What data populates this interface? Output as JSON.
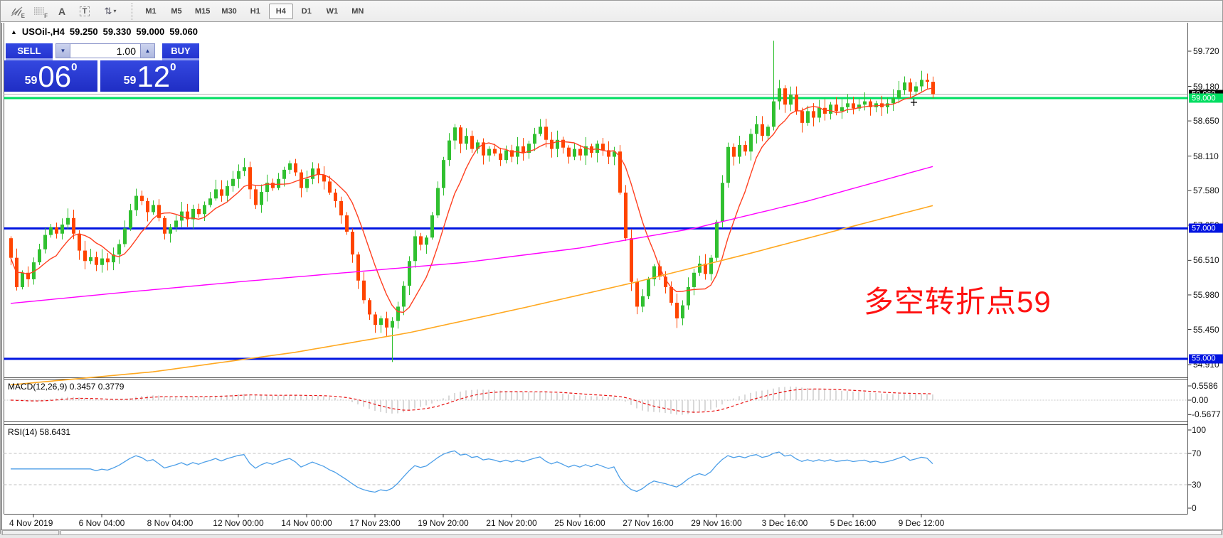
{
  "toolbar": {
    "icons": [
      {
        "name": "indicators-icon",
        "sub": "E"
      },
      {
        "name": "fibonacci-grid-icon",
        "sub": "F"
      },
      {
        "name": "text-label-icon",
        "glyph": "A"
      },
      {
        "name": "text-box-icon",
        "glyph": "T"
      },
      {
        "name": "arrows-tool-icon",
        "glyph": "⇅",
        "caret": "▾"
      }
    ],
    "timeframes": [
      {
        "label": "M1",
        "active": false
      },
      {
        "label": "M5",
        "active": false
      },
      {
        "label": "M15",
        "active": false
      },
      {
        "label": "M30",
        "active": false
      },
      {
        "label": "H1",
        "active": false
      },
      {
        "label": "H4",
        "active": true
      },
      {
        "label": "D1",
        "active": false
      },
      {
        "label": "W1",
        "active": false
      },
      {
        "label": "MN",
        "active": false
      }
    ]
  },
  "quote": {
    "marker": "▲",
    "symbol": "USOil-,H4",
    "open": "59.250",
    "high": "59.330",
    "low": "59.000",
    "close": "59.060"
  },
  "trade_panel": {
    "sell_label": "SELL",
    "buy_label": "BUY",
    "volume": "1.00",
    "spin_down": "▼",
    "spin_up": "▲",
    "sell_price": {
      "small": "59",
      "big": "06",
      "sup": "0"
    },
    "buy_price": {
      "small": "59",
      "big": "12",
      "sup": "0"
    }
  },
  "annotation": {
    "text": "多空转折点59",
    "color": "#ff1212"
  },
  "indicators": {
    "macd_label": "MACD(12,26,9) 0.3457 0.3779",
    "rsi_label": "RSI(14) 58.6431"
  },
  "axis": {
    "price_ticks": [
      {
        "label": "59.720",
        "price": 59.72
      },
      {
        "label": "59.180",
        "price": 59.18
      },
      {
        "label": "58.650",
        "price": 58.65
      },
      {
        "label": "58.110",
        "price": 58.11
      },
      {
        "label": "57.580",
        "price": 57.58
      },
      {
        "label": "57.050",
        "price": 57.05
      },
      {
        "label": "56.510",
        "price": 56.51
      },
      {
        "label": "55.980",
        "price": 55.98
      },
      {
        "label": "55.450",
        "price": 55.45
      },
      {
        "label": "54.910",
        "price": 54.91
      }
    ],
    "badges": [
      {
        "label": "59.060",
        "price": 59.06,
        "bg": "#000000",
        "fg": "#ffffff"
      },
      {
        "label": "59.000",
        "price": 59.0,
        "bg": "#00de62",
        "fg": "#ffffff"
      },
      {
        "label": "57.000",
        "price": 57.0,
        "bg": "#0014e0",
        "fg": "#ffffff"
      },
      {
        "label": "55.000",
        "price": 55.0,
        "bg": "#0014e0",
        "fg": "#ffffff"
      }
    ],
    "macd_ticks": [
      {
        "label": "0.5586",
        "value": 0.5586
      },
      {
        "label": "0.00",
        "value": 0.0
      },
      {
        "label": "-0.5677",
        "value": -0.5677
      }
    ],
    "rsi_ticks": [
      {
        "label": "100",
        "value": 100
      },
      {
        "label": "70",
        "value": 70
      },
      {
        "label": "30",
        "value": 30
      },
      {
        "label": "0",
        "value": 0
      }
    ],
    "dates": [
      "4 Nov 2019",
      "6 Nov 04:00",
      "8 Nov 04:00",
      "12 Nov 00:00",
      "14 Nov 00:00",
      "17 Nov 23:00",
      "19 Nov 20:00",
      "21 Nov 20:00",
      "25 Nov 16:00",
      "27 Nov 16:00",
      "29 Nov 16:00",
      "3 Dec 16:00",
      "5 Dec 16:00",
      "9 Dec 12:00"
    ]
  },
  "chart_data": {
    "type": "candlestick",
    "symbol": "USOil-",
    "timeframe": "H4",
    "title": "USOil-,H4  59.250 59.330 59.000 59.060",
    "ylim": [
      54.74,
      60.05
    ],
    "last_bar": {
      "open": 59.25,
      "high": 59.33,
      "low": 59.0,
      "close": 59.06
    },
    "current_price": 59.06,
    "open_first": 56.85,
    "closes": [
      56.55,
      56.1,
      56.32,
      56.22,
      56.48,
      56.68,
      56.9,
      57.02,
      56.92,
      57.06,
      57.16,
      56.92,
      56.66,
      56.5,
      56.56,
      56.44,
      56.54,
      56.48,
      56.6,
      56.76,
      57.0,
      57.28,
      57.5,
      57.42,
      57.25,
      57.36,
      57.16,
      56.92,
      57.02,
      57.12,
      57.26,
      57.14,
      57.3,
      57.22,
      57.36,
      57.46,
      57.6,
      57.5,
      57.65,
      57.76,
      57.88,
      57.94,
      57.6,
      57.36,
      57.56,
      57.7,
      57.62,
      57.76,
      57.9,
      58.0,
      57.86,
      57.62,
      57.76,
      57.92,
      57.82,
      57.72,
      57.55,
      57.42,
      57.2,
      56.95,
      56.6,
      56.2,
      55.9,
      55.68,
      55.52,
      55.62,
      55.48,
      55.58,
      55.8,
      56.12,
      56.5,
      56.88,
      56.75,
      56.86,
      57.2,
      57.62,
      58.05,
      58.35,
      58.55,
      58.3,
      58.42,
      58.22,
      58.32,
      58.12,
      58.22,
      58.15,
      58.05,
      58.2,
      58.1,
      58.26,
      58.16,
      58.3,
      58.45,
      58.56,
      58.36,
      58.22,
      58.36,
      58.24,
      58.1,
      58.22,
      58.12,
      58.26,
      58.16,
      58.3,
      58.2,
      58.1,
      58.18,
      57.55,
      56.85,
      56.18,
      55.8,
      55.96,
      56.22,
      56.42,
      56.26,
      56.1,
      55.86,
      55.62,
      55.82,
      56.1,
      56.32,
      56.46,
      56.3,
      56.55,
      57.1,
      57.7,
      58.25,
      58.1,
      58.28,
      58.18,
      58.45,
      58.6,
      58.42,
      58.56,
      58.95,
      59.15,
      58.9,
      59.05,
      58.8,
      58.62,
      58.8,
      58.7,
      58.85,
      58.76,
      58.9,
      58.8,
      58.86,
      58.92,
      58.84,
      58.9,
      58.95,
      58.86,
      58.92,
      58.86,
      58.92,
      59.0,
      59.12,
      59.24,
      59.1,
      59.18,
      59.28,
      59.25,
      59.06
    ],
    "wick_overrides": {
      "67": {
        "low": 54.95
      },
      "134": {
        "high": 59.88
      },
      "162": {
        "high": 59.33,
        "low": 59.0
      }
    },
    "bull_color": "#30c030",
    "bear_color": "#ff4400",
    "horizontal_lines": [
      {
        "price": 59.0,
        "color": "#00de62",
        "width": 3
      },
      {
        "price": 57.0,
        "color": "#0014e0",
        "width": 3
      },
      {
        "price": 55.0,
        "color": "#0014e0",
        "width": 3
      }
    ],
    "moving_averages": [
      {
        "name": "fast-ma",
        "period": 8,
        "color": "#ff4020"
      },
      {
        "name": "medium-ma",
        "color": "#ff00ff",
        "waypoints": [
          [
            0,
            55.85
          ],
          [
            20,
            56.02
          ],
          [
            40,
            56.18
          ],
          [
            60,
            56.33
          ],
          [
            80,
            56.48
          ],
          [
            100,
            56.7
          ],
          [
            120,
            57.0
          ],
          [
            140,
            57.42
          ],
          [
            162,
            57.95
          ]
        ]
      },
      {
        "name": "slow-ma",
        "color": "#ffa820",
        "waypoints": [
          [
            0,
            54.6
          ],
          [
            25,
            54.8
          ],
          [
            50,
            55.1
          ],
          [
            70,
            55.4
          ],
          [
            90,
            55.78
          ],
          [
            110,
            56.18
          ],
          [
            130,
            56.62
          ],
          [
            150,
            57.08
          ],
          [
            162,
            57.35
          ]
        ]
      }
    ],
    "macd": {
      "fast": 12,
      "slow": 26,
      "signal": 9,
      "value": 0.3457,
      "signal_value": 0.3779,
      "histogram_color": "#c9c9c9",
      "signal_color": "#e81010",
      "scale": [
        0.5586,
        0.0,
        -0.5677
      ]
    },
    "rsi": {
      "period": 14,
      "value": 58.6431,
      "color": "#4d9fe8",
      "levels": [
        70,
        30
      ]
    },
    "x_labels": [
      "4 Nov 2019",
      "6 Nov 04:00",
      "8 Nov 04:00",
      "12 Nov 00:00",
      "14 Nov 00:00",
      "17 Nov 23:00",
      "19 Nov 20:00",
      "21 Nov 20:00",
      "25 Nov 16:00",
      "27 Nov 16:00",
      "29 Nov 16:00",
      "3 Dec 16:00",
      "5 Dec 16:00",
      "9 Dec 12:00"
    ]
  }
}
